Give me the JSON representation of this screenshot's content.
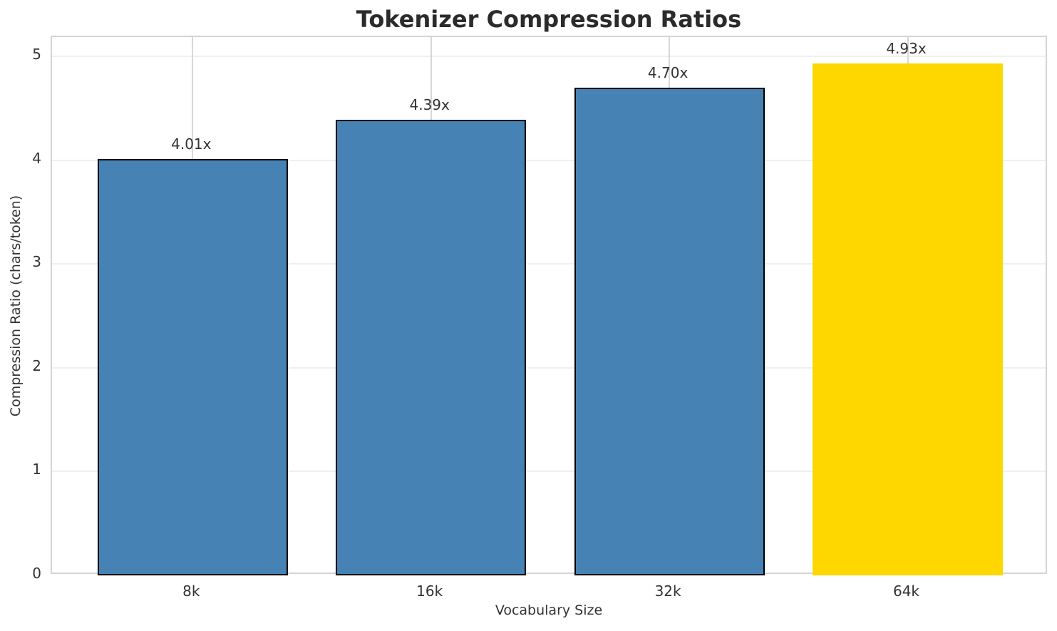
{
  "chart_data": {
    "type": "bar",
    "title": "Tokenizer Compression Ratios",
    "xlabel": "Vocabulary Size",
    "ylabel": "Compression Ratio (chars/token)",
    "categories": [
      "8k",
      "16k",
      "32k",
      "64k"
    ],
    "values": [
      4.01,
      4.39,
      4.7,
      4.93
    ],
    "bar_labels": [
      "4.01x",
      "4.39x",
      "4.70x",
      "4.93x"
    ],
    "yticks": [
      0,
      1,
      2,
      3,
      4,
      5
    ],
    "ylim": [
      0,
      5.19
    ],
    "grid": true,
    "legend_position": "none",
    "bar_color": "#4682B4",
    "highlight_color": "#FFD700",
    "highlight_index": 3,
    "bar_edge_color": "#000000",
    "title_color": "#2b2b2b",
    "tick_color": "#333333",
    "gridline_h_color": "#f0f0f0",
    "gridline_v_color": "#d7d7d7",
    "spine_color": "#d4d4d4"
  }
}
